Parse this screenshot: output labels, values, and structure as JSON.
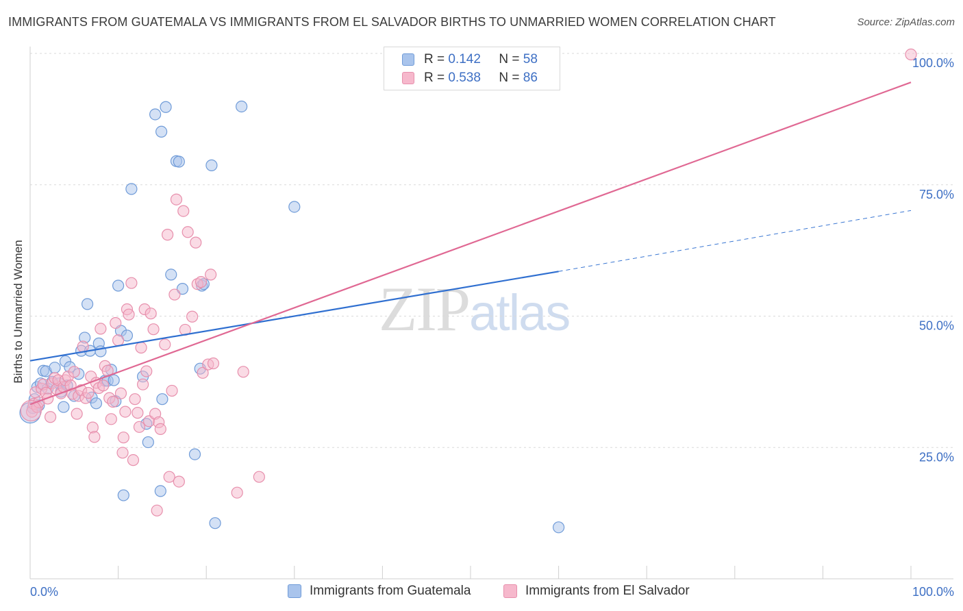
{
  "title": "IMMIGRANTS FROM GUATEMALA VS IMMIGRANTS FROM EL SALVADOR BIRTHS TO UNMARRIED WOMEN CORRELATION CHART",
  "source": "Source: ZipAtlas.com",
  "watermark": {
    "zip": "ZIP",
    "atlas": "atlas"
  },
  "legend": {
    "r_label": "R =",
    "n_label": "N =",
    "rows": [
      {
        "r": "0.142",
        "n": "58",
        "color": "#a9c4ec"
      },
      {
        "r": "0.538",
        "n": "86",
        "color": "#f6b8cc"
      }
    ]
  },
  "chart_data": {
    "type": "scatter",
    "title": "IMMIGRANTS FROM GUATEMALA VS IMMIGRANTS FROM EL SALVADOR BIRTHS TO UNMARRIED WOMEN CORRELATION CHART",
    "xlabel": "",
    "ylabel": "Births to Unmarried Women",
    "xlim": [
      0,
      100
    ],
    "ylim": [
      0,
      100
    ],
    "x_tick_labels": [
      "0.0%",
      "100.0%"
    ],
    "y_tick_labels": [
      "25.0%",
      "50.0%",
      "75.0%",
      "100.0%"
    ],
    "y_ticks": [
      25,
      50,
      75,
      100
    ],
    "grid": true,
    "legend_position": "bottom",
    "series": [
      {
        "name": "Immigrants from Guatemala",
        "color": "#a9c4ec",
        "stroke": "#6f9bd8",
        "line_color": "#2f6fd0",
        "trend": {
          "x0": 0,
          "y0": 41.5,
          "x1": 60,
          "y1": 58.5,
          "dash_to_x": 100,
          "dash_to_y": 70.1
        },
        "points": [
          [
            0.3,
            32.5
          ],
          [
            0.5,
            34.2
          ],
          [
            0.8,
            36.5
          ],
          [
            1.0,
            33.0
          ],
          [
            1.2,
            37.2
          ],
          [
            1.5,
            39.6
          ],
          [
            1.8,
            39.5
          ],
          [
            2.0,
            36.2
          ],
          [
            2.5,
            37.5
          ],
          [
            2.8,
            40.2
          ],
          [
            3.3,
            37.2
          ],
          [
            3.5,
            35.6
          ],
          [
            3.8,
            32.7
          ],
          [
            4.0,
            41.4
          ],
          [
            4.2,
            36.8
          ],
          [
            4.5,
            40.3
          ],
          [
            5.0,
            34.8
          ],
          [
            5.5,
            39.0
          ],
          [
            5.8,
            43.4
          ],
          [
            6.2,
            45.9
          ],
          [
            6.5,
            52.3
          ],
          [
            6.8,
            43.4
          ],
          [
            7.0,
            34.5
          ],
          [
            7.5,
            33.4
          ],
          [
            7.8,
            44.8
          ],
          [
            8.0,
            43.3
          ],
          [
            8.5,
            37.7
          ],
          [
            8.8,
            37.7
          ],
          [
            9.2,
            39.8
          ],
          [
            9.5,
            37.8
          ],
          [
            9.7,
            33.8
          ],
          [
            10.0,
            55.8
          ],
          [
            10.3,
            47.2
          ],
          [
            10.6,
            15.9
          ],
          [
            11.0,
            46.3
          ],
          [
            11.5,
            74.2
          ],
          [
            12.8,
            38.5
          ],
          [
            13.2,
            29.5
          ],
          [
            13.4,
            26.0
          ],
          [
            14.2,
            88.4
          ],
          [
            14.8,
            16.7
          ],
          [
            14.9,
            85.1
          ],
          [
            15.0,
            34.2
          ],
          [
            15.4,
            89.8
          ],
          [
            16.0,
            57.9
          ],
          [
            16.6,
            79.5
          ],
          [
            16.9,
            79.4
          ],
          [
            17.3,
            55.2
          ],
          [
            18.7,
            23.7
          ],
          [
            19.3,
            40.0
          ],
          [
            19.5,
            55.8
          ],
          [
            19.7,
            56.1
          ],
          [
            20.6,
            78.7
          ],
          [
            21.0,
            10.6
          ],
          [
            24.0,
            89.9
          ],
          [
            30.0,
            70.8
          ],
          [
            60.0,
            9.8
          ],
          [
            0.0,
            31.6
          ]
        ]
      },
      {
        "name": "Immigrants from El Salvador",
        "color": "#f6b8cc",
        "stroke": "#e78fac",
        "line_color": "#e06893",
        "trend": {
          "x0": 0,
          "y0": 33.2,
          "x1": 100,
          "y1": 94.5
        },
        "points": [
          [
            0.2,
            31.8
          ],
          [
            0.4,
            33.3
          ],
          [
            0.6,
            35.5
          ],
          [
            0.8,
            32.7
          ],
          [
            1.0,
            33.6
          ],
          [
            1.3,
            36.2
          ],
          [
            1.5,
            37.0
          ],
          [
            1.8,
            35.4
          ],
          [
            2.0,
            34.3
          ],
          [
            2.3,
            30.8
          ],
          [
            2.5,
            37.2
          ],
          [
            2.8,
            38.2
          ],
          [
            3.0,
            36.1
          ],
          [
            3.2,
            37.8
          ],
          [
            3.5,
            35.3
          ],
          [
            3.8,
            36.5
          ],
          [
            4.0,
            37.8
          ],
          [
            4.3,
            38.5
          ],
          [
            4.6,
            36.8
          ],
          [
            4.8,
            35.2
          ],
          [
            5.0,
            39.4
          ],
          [
            5.3,
            31.4
          ],
          [
            5.5,
            34.8
          ],
          [
            5.8,
            35.9
          ],
          [
            6.0,
            44.2
          ],
          [
            6.3,
            34.4
          ],
          [
            6.6,
            35.4
          ],
          [
            6.9,
            38.5
          ],
          [
            7.1,
            28.8
          ],
          [
            7.3,
            27.0
          ],
          [
            7.5,
            37.3
          ],
          [
            7.8,
            36.3
          ],
          [
            8.0,
            47.6
          ],
          [
            8.3,
            36.8
          ],
          [
            8.5,
            40.5
          ],
          [
            8.8,
            39.6
          ],
          [
            9.0,
            34.4
          ],
          [
            9.2,
            30.4
          ],
          [
            9.4,
            33.7
          ],
          [
            9.7,
            48.7
          ],
          [
            10.0,
            45.4
          ],
          [
            10.3,
            35.3
          ],
          [
            10.5,
            24.0
          ],
          [
            10.6,
            26.9
          ],
          [
            10.8,
            31.8
          ],
          [
            11.0,
            51.3
          ],
          [
            11.2,
            50.3
          ],
          [
            11.5,
            56.3
          ],
          [
            11.7,
            22.6
          ],
          [
            11.9,
            34.2
          ],
          [
            12.2,
            31.6
          ],
          [
            12.4,
            28.9
          ],
          [
            12.6,
            44.0
          ],
          [
            12.8,
            37.0
          ],
          [
            13.0,
            51.3
          ],
          [
            13.2,
            39.5
          ],
          [
            13.5,
            30.0
          ],
          [
            13.7,
            50.5
          ],
          [
            14.0,
            47.5
          ],
          [
            14.2,
            31.4
          ],
          [
            14.4,
            13.0
          ],
          [
            14.6,
            29.8
          ],
          [
            14.8,
            28.5
          ],
          [
            15.3,
            44.6
          ],
          [
            15.6,
            65.5
          ],
          [
            15.8,
            19.4
          ],
          [
            16.1,
            35.8
          ],
          [
            16.4,
            54.1
          ],
          [
            16.6,
            72.2
          ],
          [
            16.9,
            18.5
          ],
          [
            17.4,
            70.0
          ],
          [
            17.6,
            47.4
          ],
          [
            17.9,
            66.0
          ],
          [
            18.4,
            49.9
          ],
          [
            18.8,
            64.0
          ],
          [
            19.0,
            56.1
          ],
          [
            19.4,
            56.5
          ],
          [
            19.6,
            39.2
          ],
          [
            20.2,
            40.8
          ],
          [
            20.5,
            57.9
          ],
          [
            20.8,
            41.0
          ],
          [
            23.5,
            16.4
          ],
          [
            24.2,
            39.4
          ],
          [
            26.0,
            19.4
          ],
          [
            100.0,
            99.8
          ],
          [
            0.1,
            32.0
          ]
        ]
      }
    ]
  }
}
